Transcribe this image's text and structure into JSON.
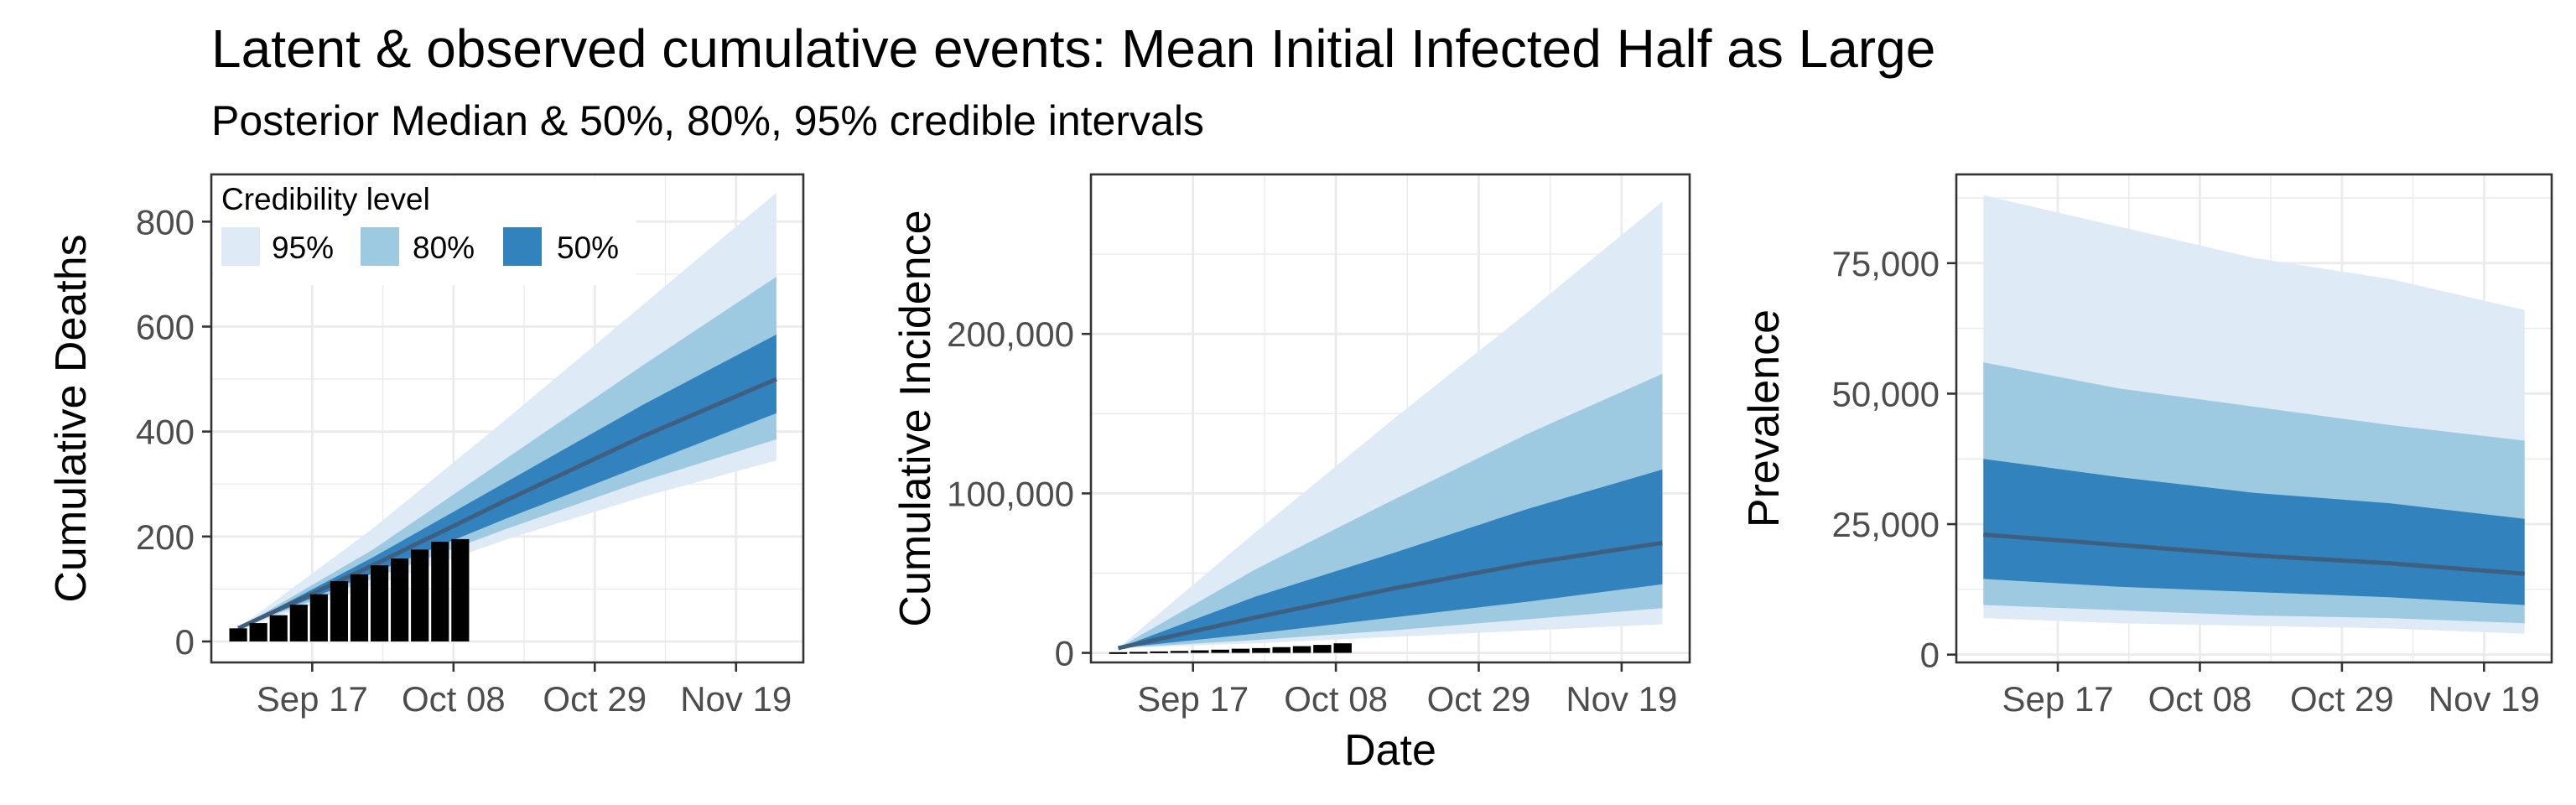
{
  "header": {
    "title": "Latent & observed cumulative events: Mean Initial Infected Half as Large",
    "subtitle": "Posterior Median & 50%, 80%, 95% credible intervals"
  },
  "legend": {
    "title": "Credibility level",
    "items": [
      {
        "label": "95%",
        "color": "#deebf7"
      },
      {
        "label": "80%",
        "color": "#9ecae1"
      },
      {
        "label": "50%",
        "color": "#3182bd"
      }
    ]
  },
  "colors": {
    "band95": "#deebf7",
    "band80": "#9ecae1",
    "band50": "#3182bd",
    "median": "#3e5f7f",
    "bars": "#000000",
    "grid": "#ebebeb",
    "axis": "#333333"
  },
  "chart_data": [
    {
      "type": "area",
      "xlabel": "",
      "ylabel": "Cumulative Deaths",
      "xlim": [
        "2020-09-02",
        "2020-11-29"
      ],
      "ylim": [
        -40,
        890
      ],
      "x_ticks": [
        "2020-09-17",
        "2020-10-08",
        "2020-10-29",
        "2020-11-19"
      ],
      "x_tick_labels": [
        "Sep 17",
        "Oct 08",
        "Oct 29",
        "Nov 19"
      ],
      "y_ticks": [
        0,
        200,
        400,
        600,
        800
      ],
      "y_tick_labels": [
        "0",
        "200",
        "400",
        "600",
        "800"
      ],
      "grid": true,
      "legend_position": "top-left",
      "bands": {
        "x": [
          "2020-09-06",
          "2020-09-26",
          "2020-10-16",
          "2020-11-05",
          "2020-11-25"
        ],
        "median": [
          25,
          145,
          270,
          390,
          500
        ],
        "band50": {
          "lower": [
            25,
            130,
            235,
            335,
            435
          ],
          "upper": [
            25,
            160,
            305,
            450,
            585
          ]
        },
        "band80": {
          "lower": [
            25,
            120,
            215,
            305,
            385
          ],
          "upper": [
            25,
            175,
            350,
            525,
            695
          ]
        },
        "band95": {
          "lower": [
            25,
            105,
            195,
            275,
            345
          ],
          "upper": [
            25,
            215,
            425,
            640,
            855
          ]
        }
      },
      "observed": {
        "x": [
          "2020-09-06",
          "2020-09-09",
          "2020-09-12",
          "2020-09-15",
          "2020-09-18",
          "2020-09-21",
          "2020-09-24",
          "2020-09-27",
          "2020-09-30",
          "2020-10-03",
          "2020-10-06",
          "2020-10-09"
        ],
        "values": [
          25,
          35,
          50,
          70,
          90,
          115,
          128,
          145,
          158,
          175,
          190,
          195
        ]
      }
    },
    {
      "type": "area",
      "xlabel": "Date",
      "ylabel": "Cumulative Incidence",
      "xlim": [
        "2020-09-02",
        "2020-11-29"
      ],
      "ylim": [
        -6000,
        300000
      ],
      "x_ticks": [
        "2020-09-17",
        "2020-10-08",
        "2020-10-29",
        "2020-11-19"
      ],
      "x_tick_labels": [
        "Sep 17",
        "Oct 08",
        "Oct 29",
        "Nov 19"
      ],
      "y_ticks": [
        0,
        100000,
        200000
      ],
      "y_tick_labels": [
        "0",
        "100,000",
        "200,000"
      ],
      "grid": true,
      "bands": {
        "x": [
          "2020-09-06",
          "2020-09-26",
          "2020-10-16",
          "2020-11-05",
          "2020-11-25"
        ],
        "median": [
          3000,
          22000,
          40000,
          56000,
          69000
        ],
        "band50": {
          "lower": [
            3000,
            12000,
            22000,
            32000,
            43000
          ],
          "upper": [
            3000,
            35000,
            62000,
            90000,
            115000
          ]
        },
        "band80": {
          "lower": [
            3000,
            8000,
            14000,
            21000,
            28000
          ],
          "upper": [
            3000,
            52000,
            95000,
            137000,
            175000
          ]
        },
        "band95": {
          "lower": [
            3000,
            6000,
            10000,
            14000,
            18000
          ],
          "upper": [
            3000,
            75000,
            145000,
            213000,
            283000
          ]
        }
      },
      "observed": {
        "x": [
          "2020-09-06",
          "2020-09-09",
          "2020-09-12",
          "2020-09-15",
          "2020-09-18",
          "2020-09-21",
          "2020-09-24",
          "2020-09-27",
          "2020-09-30",
          "2020-10-03",
          "2020-10-06",
          "2020-10-09"
        ],
        "values": [
          400,
          600,
          900,
          1200,
          1600,
          2000,
          2600,
          3000,
          3600,
          4200,
          5000,
          6000
        ]
      }
    },
    {
      "type": "area",
      "xlabel": "",
      "ylabel": "Prevalence",
      "xlim": [
        "2020-09-02",
        "2020-11-29"
      ],
      "ylim": [
        -1500,
        92000
      ],
      "x_ticks": [
        "2020-09-17",
        "2020-10-08",
        "2020-10-29",
        "2020-11-19"
      ],
      "x_tick_labels": [
        "Sep 17",
        "Oct 08",
        "Oct 29",
        "Nov 19"
      ],
      "y_ticks": [
        0,
        25000,
        50000,
        75000
      ],
      "y_tick_labels": [
        "0",
        "25,000",
        "50,000",
        "75,000"
      ],
      "grid": true,
      "bands": {
        "x": [
          "2020-09-06",
          "2020-09-26",
          "2020-10-16",
          "2020-11-05",
          "2020-11-25"
        ],
        "median": [
          23000,
          21000,
          19000,
          17500,
          15500
        ],
        "band50": {
          "lower": [
            14500,
            13000,
            12000,
            11000,
            9500
          ],
          "upper": [
            37500,
            34000,
            31000,
            29000,
            26000
          ]
        },
        "band80": {
          "lower": [
            9500,
            8500,
            7500,
            7000,
            6000
          ],
          "upper": [
            56000,
            51000,
            47500,
            44000,
            41000
          ]
        },
        "band95": {
          "lower": [
            7000,
            6000,
            5500,
            5000,
            4000
          ],
          "upper": [
            88000,
            82000,
            76000,
            72000,
            66000
          ]
        }
      }
    }
  ]
}
